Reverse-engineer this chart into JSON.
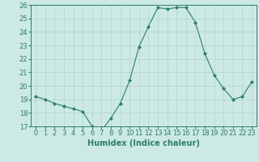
{
  "x": [
    0,
    1,
    2,
    3,
    4,
    5,
    6,
    7,
    8,
    9,
    10,
    11,
    12,
    13,
    14,
    15,
    16,
    17,
    18,
    19,
    20,
    21,
    22,
    23
  ],
  "y": [
    19.2,
    19.0,
    18.7,
    18.5,
    18.3,
    18.1,
    17.0,
    16.7,
    17.6,
    18.7,
    20.4,
    22.9,
    24.4,
    25.8,
    25.7,
    25.8,
    25.8,
    24.7,
    22.4,
    20.8,
    19.8,
    19.0,
    19.2,
    20.3
  ],
  "line_color": "#2d7d6e",
  "marker": "D",
  "marker_size": 2,
  "bg_color": "#cce9e5",
  "grid_color": "#b0d4d0",
  "xlabel": "Humidex (Indice chaleur)",
  "ylim": [
    17,
    26
  ],
  "yticks": [
    17,
    18,
    19,
    20,
    21,
    22,
    23,
    24,
    25,
    26
  ],
  "xticks": [
    0,
    1,
    2,
    3,
    4,
    5,
    6,
    7,
    8,
    9,
    10,
    11,
    12,
    13,
    14,
    15,
    16,
    17,
    18,
    19,
    20,
    21,
    22,
    23
  ],
  "label_fontsize": 7,
  "tick_fontsize": 6
}
